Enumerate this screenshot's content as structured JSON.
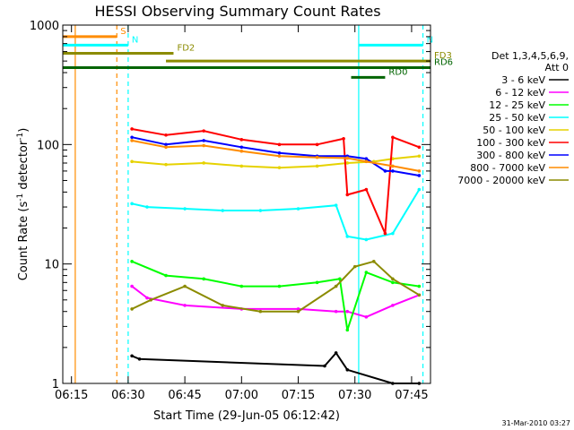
{
  "chart_data": {
    "type": "line",
    "title": "HESSI Observing Summary Count Rates",
    "xlabel": "Start Time (29-Jun-05 06:12:42)",
    "ylabel": "Count Rate (s",
    "ylabel_sup": "-1",
    "ylabel_end": " detector",
    "ylabel_sup2": "-1",
    "ylabel_close": ")",
    "yscale": "log",
    "xlim": [
      "06:12:42",
      "07:50:00"
    ],
    "ylim": [
      1,
      1000
    ],
    "x_ticks": [
      "06:15",
      "06:30",
      "06:45",
      "07:00",
      "07:15",
      "07:30",
      "07:45"
    ],
    "y_ticks": [
      "1",
      "10",
      "100",
      "1000"
    ],
    "grid": false,
    "legend_header": [
      "Det 1,3,4,5,6,9,",
      "Att 0"
    ],
    "legend_position": "right",
    "series": [
      {
        "name": "3 - 6 keV",
        "color": "#000000",
        "x": [
          "06:31",
          "06:33",
          "07:22",
          "07:25",
          "07:28",
          "07:40",
          "07:47"
        ],
        "y": [
          1.7,
          1.6,
          1.4,
          1.8,
          1.3,
          1.0,
          1.0
        ]
      },
      {
        "name": "6 - 12 keV",
        "color": "#ff00ff",
        "x": [
          "06:31",
          "06:35",
          "06:45",
          "07:00",
          "07:15",
          "07:25",
          "07:28",
          "07:33",
          "07:40",
          "07:47"
        ],
        "y": [
          6.5,
          5.2,
          4.5,
          4.2,
          4.2,
          4.0,
          4.0,
          3.6,
          4.5,
          5.5
        ]
      },
      {
        "name": "12 - 25 keV",
        "color": "#00ff00",
        "x": [
          "06:31",
          "06:40",
          "06:50",
          "07:00",
          "07:10",
          "07:20",
          "07:26",
          "07:28",
          "07:33",
          "07:40",
          "07:47"
        ],
        "y": [
          10.5,
          8.0,
          7.5,
          6.5,
          6.5,
          7.0,
          7.5,
          2.8,
          8.5,
          7.0,
          6.5
        ]
      },
      {
        "name": "25 - 50 keV",
        "color": "#00ffff",
        "x": [
          "06:31",
          "06:35",
          "06:45",
          "06:55",
          "07:05",
          "07:15",
          "07:25",
          "07:28",
          "07:33",
          "07:40",
          "07:47"
        ],
        "y": [
          32,
          30,
          29,
          28,
          28,
          29,
          31,
          17,
          16,
          18,
          42
        ]
      },
      {
        "name": "50 - 100 keV",
        "color": "#e6d200",
        "x": [
          "06:31",
          "06:40",
          "06:50",
          "07:00",
          "07:10",
          "07:20",
          "07:28",
          "07:35",
          "07:40",
          "07:47"
        ],
        "y": [
          72,
          68,
          70,
          66,
          64,
          66,
          70,
          72,
          76,
          80
        ]
      },
      {
        "name": "100 - 300 keV",
        "color": "#ff0000",
        "x": [
          "06:31",
          "06:40",
          "06:50",
          "07:00",
          "07:10",
          "07:20",
          "07:27",
          "07:28",
          "07:33",
          "07:38",
          "07:40",
          "07:47"
        ],
        "y": [
          135,
          120,
          130,
          110,
          100,
          100,
          112,
          38,
          42,
          18,
          115,
          95
        ]
      },
      {
        "name": "300 - 800 keV",
        "color": "#0000ff",
        "x": [
          "06:31",
          "06:40",
          "06:50",
          "07:00",
          "07:10",
          "07:20",
          "07:28",
          "07:33",
          "07:38",
          "07:40",
          "07:47"
        ],
        "y": [
          115,
          100,
          108,
          95,
          85,
          80,
          80,
          76,
          60,
          60,
          55
        ]
      },
      {
        "name": "800 - 7000 keV",
        "color": "#ff8c00",
        "x": [
          "06:31",
          "06:40",
          "06:50",
          "07:00",
          "07:10",
          "07:20",
          "07:28",
          "07:33",
          "07:40",
          "07:47"
        ],
        "y": [
          108,
          95,
          98,
          88,
          80,
          78,
          77,
          72,
          66,
          60
        ]
      },
      {
        "name": "7000 - 20000 keV",
        "color": "#8b8b00",
        "x": [
          "06:31",
          "06:36",
          "06:45",
          "06:55",
          "07:05",
          "07:15",
          "07:25",
          "07:30",
          "07:35",
          "07:40",
          "07:47"
        ],
        "y": [
          4.2,
          5.0,
          6.5,
          4.5,
          4.0,
          4.0,
          6.5,
          9.5,
          10.5,
          7.5,
          5.5
        ]
      }
    ],
    "status_bars": [
      {
        "label": "S",
        "color": "#ff8c00",
        "start": "06:12:42",
        "end": "06:27",
        "y": 800
      },
      {
        "label": "N",
        "color": "#00ffff",
        "start": "06:12:42",
        "end": "06:30",
        "y": 680
      },
      {
        "label": "N",
        "color": "#00ffff",
        "start": "07:31",
        "end": "07:48",
        "y": 680
      },
      {
        "label": "FD2",
        "color": "#8b8b00",
        "start": "06:12:42",
        "end": "06:42",
        "y": 580
      },
      {
        "label": "FD3",
        "color": "#8b8b00",
        "start": "06:40",
        "end": "07:50",
        "y": 500
      },
      {
        "label": "RD0",
        "color": "#006400",
        "start": "07:29",
        "end": "07:38",
        "y": 365
      },
      {
        "label": "RD6",
        "color": "#006400",
        "start": "06:12:42",
        "end": "07:50",
        "y": 440
      }
    ],
    "vertical_markers": [
      {
        "time": "06:16",
        "color": "#ff8c00",
        "style": "solid"
      },
      {
        "time": "06:27",
        "color": "#ff8c00",
        "style": "dashed"
      },
      {
        "time": "06:30",
        "color": "#00ffff",
        "style": "dashed"
      },
      {
        "time": "07:31",
        "color": "#00ffff",
        "style": "solid"
      },
      {
        "time": "07:48",
        "color": "#00ffff",
        "style": "dashed"
      }
    ],
    "footer_timestamp": "31-Mar-2010 03:27"
  }
}
